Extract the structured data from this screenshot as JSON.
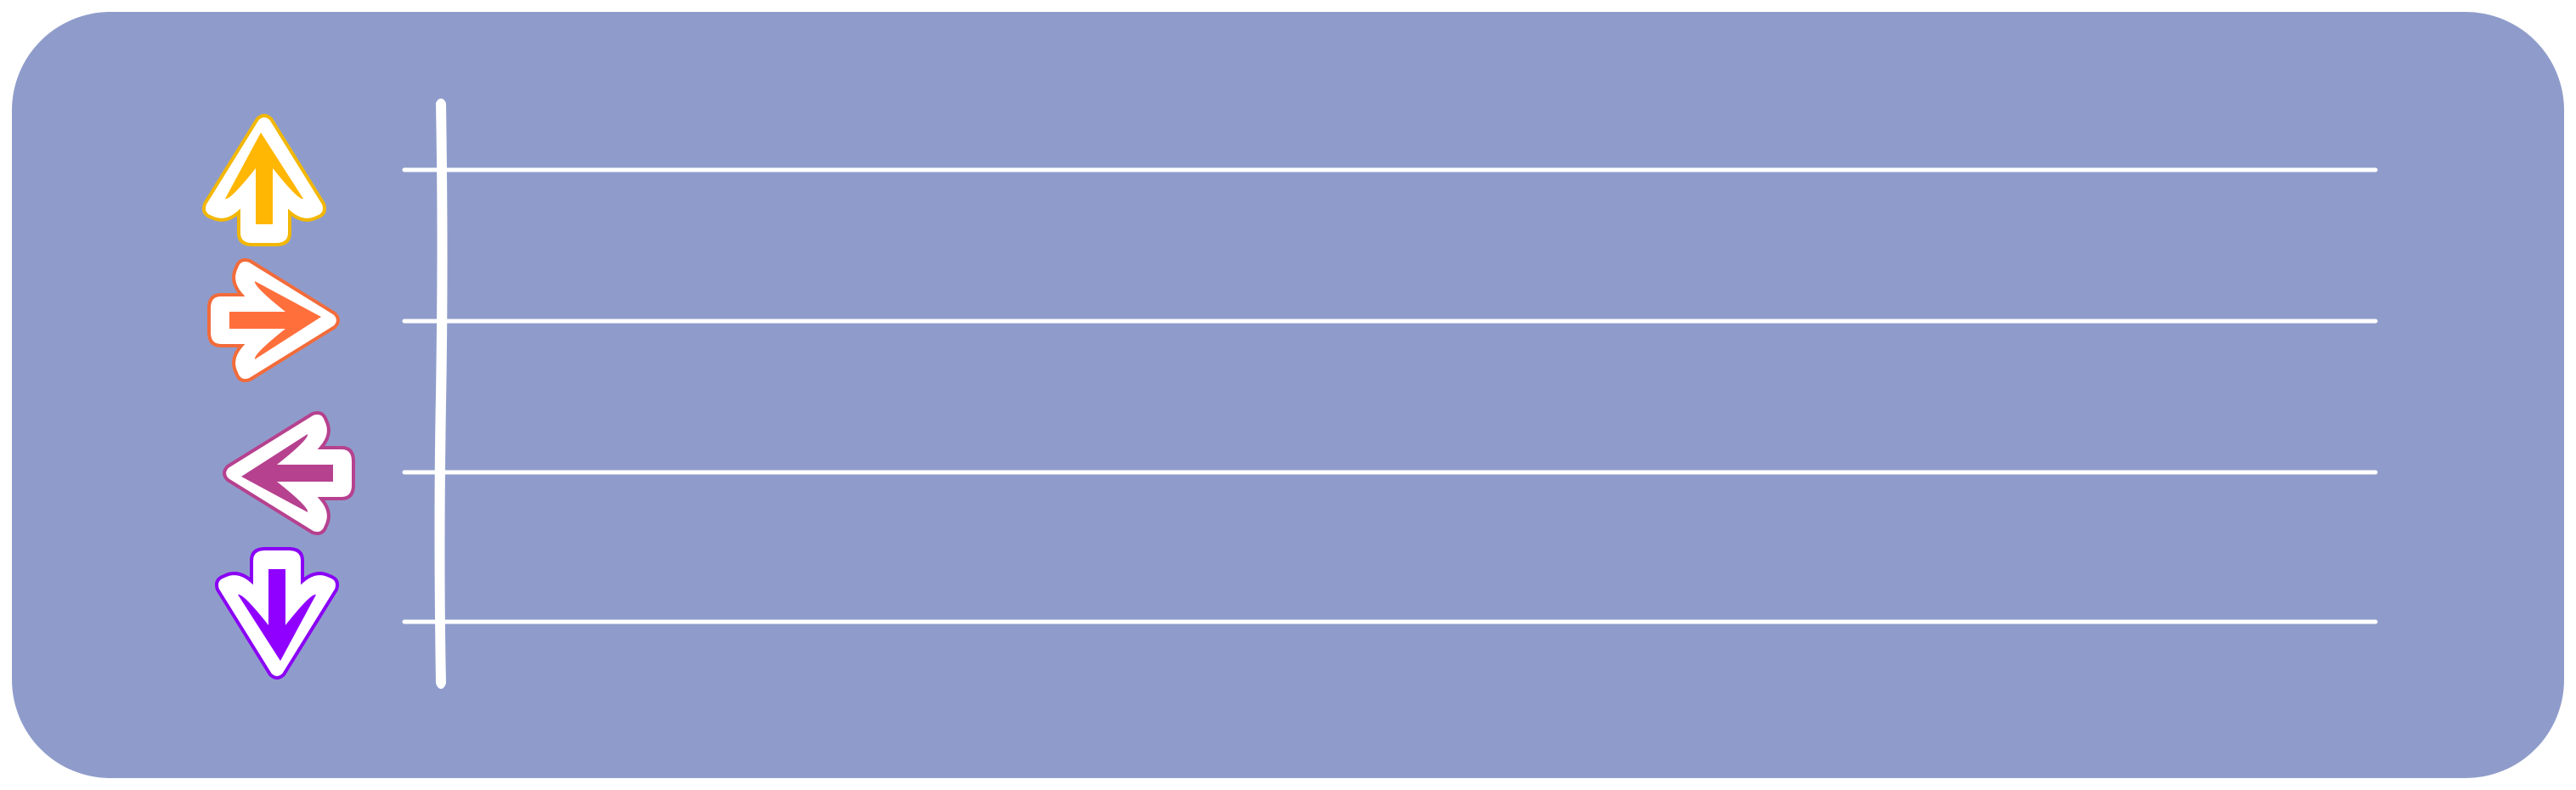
{
  "board": {
    "background": "#8F9CCB",
    "line_color": "#FFFFFF"
  },
  "lanes": [
    {
      "direction": "up",
      "icon": "up-arrow-icon",
      "fill": "#FFB703",
      "outline": "#F2B705"
    },
    {
      "direction": "right",
      "icon": "right-arrow-icon",
      "fill": "#FF6F3C",
      "outline": "#F26B3A"
    },
    {
      "direction": "left",
      "icon": "left-arrow-icon",
      "fill": "#B6418F",
      "outline": "#B6418F"
    },
    {
      "direction": "down",
      "icon": "down-arrow-icon",
      "fill": "#9000FF",
      "outline": "#8A00F5"
    }
  ]
}
